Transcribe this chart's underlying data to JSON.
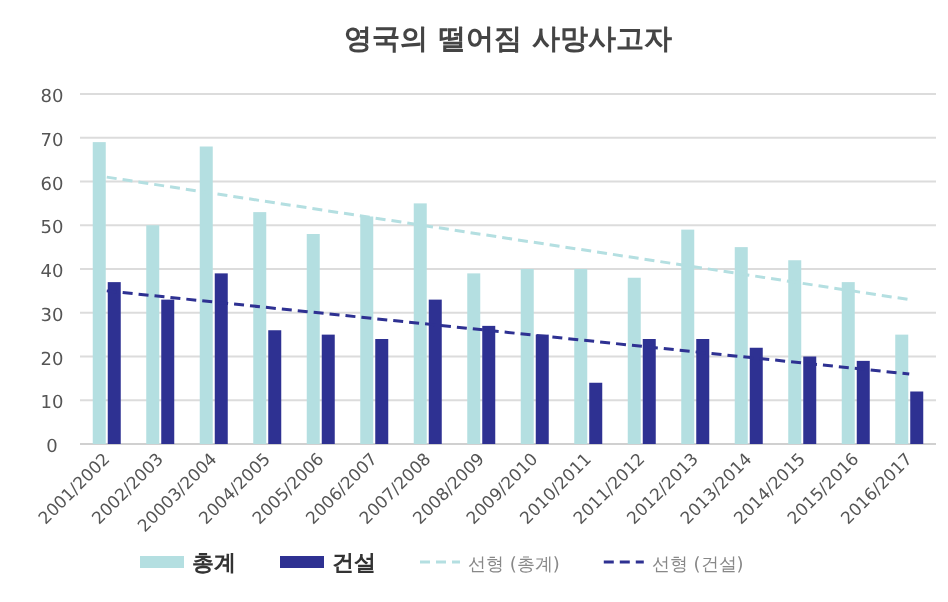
{
  "chart_data": {
    "type": "bar",
    "title": "영국의 떨어짐 사망사고자",
    "categories": [
      "2001/2002",
      "2002/2003",
      "20003/2004",
      "2004/2005",
      "2005/2006",
      "2006/2007",
      "2007/2008",
      "2008/2009",
      "2009/2010",
      "2010/2011",
      "2011/2012",
      "2012/2013",
      "2013/2014",
      "2014/2015",
      "2015/2016",
      "2016/2017"
    ],
    "series": [
      {
        "name": "총계",
        "color": "#b4dfe1",
        "values": [
          69,
          50,
          68,
          53,
          48,
          52,
          55,
          39,
          40,
          40,
          38,
          49,
          45,
          42,
          37,
          25
        ]
      },
      {
        "name": "건설",
        "color": "#2e3192",
        "values": [
          37,
          33,
          39,
          26,
          25,
          24,
          33,
          27,
          25,
          14,
          24,
          24,
          22,
          20,
          19,
          12
        ]
      },
      {
        "name": "선형 (총계)",
        "type": "line",
        "line_style": "dashed",
        "color": "#b4dfe1",
        "x": [
          "2001/2002",
          "2016/2017"
        ],
        "values": [
          61,
          33
        ]
      },
      {
        "name": "선형 (건설)",
        "type": "line",
        "line_style": "dashed",
        "color": "#2e3192",
        "x": [
          "2001/2002",
          "2016/2017"
        ],
        "values": [
          35,
          16
        ]
      }
    ],
    "ylim": [
      0,
      80
    ],
    "yticks": [
      0,
      10,
      20,
      30,
      40,
      50,
      60,
      70,
      80
    ],
    "grid": "y",
    "legend": "bottom"
  }
}
